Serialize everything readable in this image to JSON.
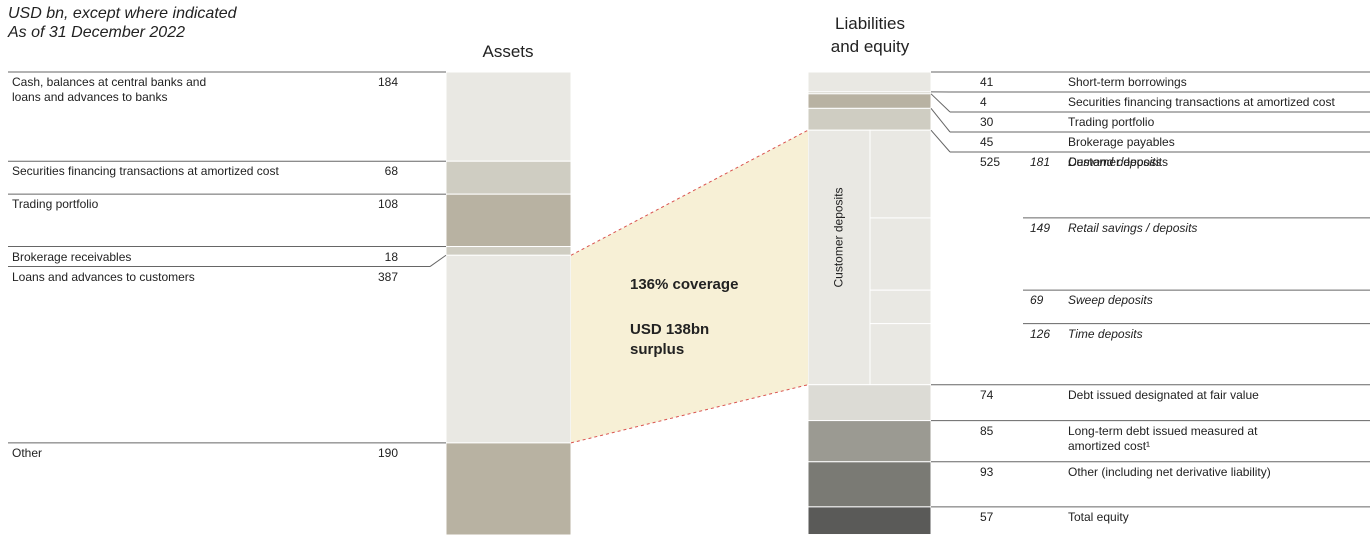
{
  "chart_data": {
    "type": "balance",
    "note": "USD bn, except where indicated",
    "date": "As of 31 December 2022",
    "assets": {
      "title": "Assets",
      "items": [
        {
          "label": "Cash, balances at central banks and\nloans and advances to banks",
          "value": 184,
          "color": "#e9e8e3"
        },
        {
          "label": "Securities financing transactions at amortized cost",
          "value": 68,
          "color": "#cfcdc2"
        },
        {
          "label": "Trading portfolio",
          "value": 108,
          "color": "#b8b2a2"
        },
        {
          "label": "Brokerage receivables",
          "value": 18,
          "color": "#cfcdc2"
        },
        {
          "label": "Loans and advances to customers",
          "value": 387,
          "color": "#e9e8e3"
        },
        {
          "label": "Other",
          "value": 190,
          "color": "#b8b2a2"
        }
      ]
    },
    "liabilities": {
      "title": "Liabilities\nand equity",
      "items": [
        {
          "label": "Short-term borrowings",
          "value": 41,
          "color": "#e9e8e3"
        },
        {
          "label": "Securities financing transactions at amortized cost",
          "value": 4,
          "color": "#cfcdc2"
        },
        {
          "label": "Trading portfolio",
          "value": 30,
          "color": "#b8b2a2"
        },
        {
          "label": "Brokerage payables",
          "value": 45,
          "color": "#cfcdc2"
        },
        {
          "label": "Customer deposits",
          "value": 525,
          "color": "#e9e8e3",
          "children": [
            {
              "label": "Demand deposits",
              "value": 181
            },
            {
              "label": "Retail savings / deposits",
              "value": 149
            },
            {
              "label": "Sweep deposits",
              "value": 69
            },
            {
              "label": "Time deposits",
              "value": 126
            }
          ]
        },
        {
          "label": "Debt issued designated at fair value",
          "value": 74,
          "color": "#dcdbd5"
        },
        {
          "label": "Long-term debt issued measured at\namortized cost¹",
          "value": 85,
          "color": "#9b9a92"
        },
        {
          "label": "Other (including net derivative liability)",
          "value": 93,
          "color": "#7a7a74"
        },
        {
          "label": "Total equity",
          "value": 57,
          "color": "#5a5a58"
        }
      ]
    },
    "annotations": [
      "136% coverage",
      "USD 138bn\nsurplus"
    ]
  }
}
